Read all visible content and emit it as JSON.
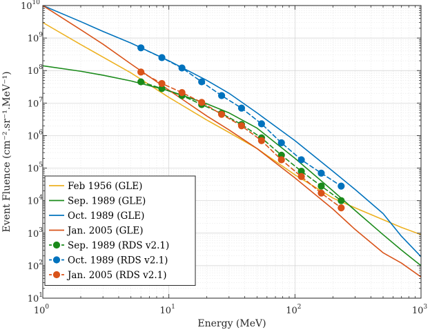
{
  "chart_data": {
    "type": "line",
    "title": "",
    "xlabel": "Energy (MeV)",
    "ylabel": "Event Fluence (cm⁻².sr⁻¹.MeV⁻¹)",
    "xscale": "log",
    "yscale": "log",
    "xlim": [
      1,
      1000
    ],
    "ylim": [
      10,
      10000000000
    ],
    "grid": true,
    "legend_position": "bottom-left",
    "x_ticks": [
      {
        "base": "10",
        "exp": "0",
        "value": 1
      },
      {
        "base": "10",
        "exp": "1",
        "value": 10
      },
      {
        "base": "10",
        "exp": "2",
        "value": 100
      },
      {
        "base": "10",
        "exp": "3",
        "value": 1000
      }
    ],
    "y_ticks": [
      {
        "base": "10",
        "exp": "1",
        "value": 10
      },
      {
        "base": "10",
        "exp": "2",
        "value": 100
      },
      {
        "base": "10",
        "exp": "3",
        "value": 1000
      },
      {
        "base": "10",
        "exp": "4",
        "value": 10000
      },
      {
        "base": "10",
        "exp": "5",
        "value": 100000
      },
      {
        "base": "10",
        "exp": "6",
        "value": 1000000
      },
      {
        "base": "10",
        "exp": "7",
        "value": 10000000
      },
      {
        "base": "10",
        "exp": "8",
        "value": 100000000
      },
      {
        "base": "10",
        "exp": "9",
        "value": 1000000000
      },
      {
        "base": "10",
        "exp": "10",
        "value": 10000000000
      }
    ],
    "series": [
      {
        "name": "Feb 1956 (GLE)",
        "color": "#EDB120",
        "style": "solid",
        "marker": false,
        "x": [
          1,
          2,
          3,
          5,
          10,
          20,
          30,
          50,
          100,
          200,
          300,
          500,
          700,
          1000
        ],
        "y": [
          3000000000,
          630000000,
          260000000,
          85000000,
          15000000,
          3000000,
          1250000,
          400000,
          62000,
          12000,
          6000,
          2600,
          1500,
          900
        ]
      },
      {
        "name": "Sep. 1989 (GLE)",
        "color": "#1A8A1A",
        "style": "solid",
        "marker": false,
        "x": [
          1,
          2,
          3,
          5,
          10,
          20,
          30,
          50,
          100,
          200,
          300,
          500,
          700,
          1000
        ],
        "y": [
          140000000,
          95000000,
          72000000,
          48000000,
          24000000,
          9500000,
          5000000,
          1700000,
          200000,
          20000,
          5000,
          900,
          300,
          100
        ]
      },
      {
        "name": "Oct. 1989 (GLE)",
        "color": "#0072BD",
        "style": "solid",
        "marker": false,
        "x": [
          1,
          2,
          3,
          5,
          10,
          20,
          30,
          50,
          100,
          200,
          300,
          500,
          700,
          1000
        ],
        "y": [
          10000000000,
          3200000000,
          1600000000,
          700000000,
          200000000,
          50000000,
          20000000,
          5000000,
          700000,
          80000,
          22000,
          4000,
          800,
          190
        ]
      },
      {
        "name": "Jan. 2005 (GLE)",
        "color": "#D95319",
        "style": "solid",
        "marker": false,
        "x": [
          1,
          2,
          3,
          5,
          10,
          20,
          30,
          50,
          100,
          200,
          300,
          500,
          700,
          1000
        ],
        "y": [
          10000000000,
          1800000000,
          650000000,
          160000000,
          25000000,
          4000000,
          1500000,
          400000,
          50000,
          5500,
          1300,
          250,
          120,
          45
        ]
      },
      {
        "name": "Sep. 1989 (RDS v2.1)",
        "color": "#1A8A1A",
        "style": "dashed",
        "marker": true,
        "x": [
          6,
          8.8,
          12.7,
          18.2,
          26.2,
          37.7,
          54.3,
          78.1,
          112.4,
          161.7,
          232.7
        ],
        "y": [
          45000000,
          28000000,
          17000000,
          9000000,
          4800000,
          2200000,
          850000,
          250000,
          80000,
          28000,
          10000
        ]
      },
      {
        "name": "Oct. 1989 (RDS v2.1)",
        "color": "#0072BD",
        "style": "dashed",
        "marker": true,
        "x": [
          6,
          8.8,
          12.7,
          18.2,
          26.2,
          37.7,
          54.3,
          78.1,
          112.4,
          161.7,
          232.7
        ],
        "y": [
          500000000,
          250000000,
          120000000,
          45000000,
          17000000,
          7000000,
          2300000,
          600000,
          180000,
          70000,
          28000
        ]
      },
      {
        "name": "Jan. 2005 (RDS v2.1)",
        "color": "#D95319",
        "style": "dashed",
        "marker": true,
        "x": [
          6,
          8.8,
          12.7,
          18.2,
          26.2,
          37.7,
          54.3,
          78.1,
          112.4,
          161.7,
          232.7
        ],
        "y": [
          90000000,
          40000000,
          21000000,
          10500000,
          4500000,
          2000000,
          700000,
          180000,
          55000,
          17000,
          6000
        ]
      }
    ]
  }
}
